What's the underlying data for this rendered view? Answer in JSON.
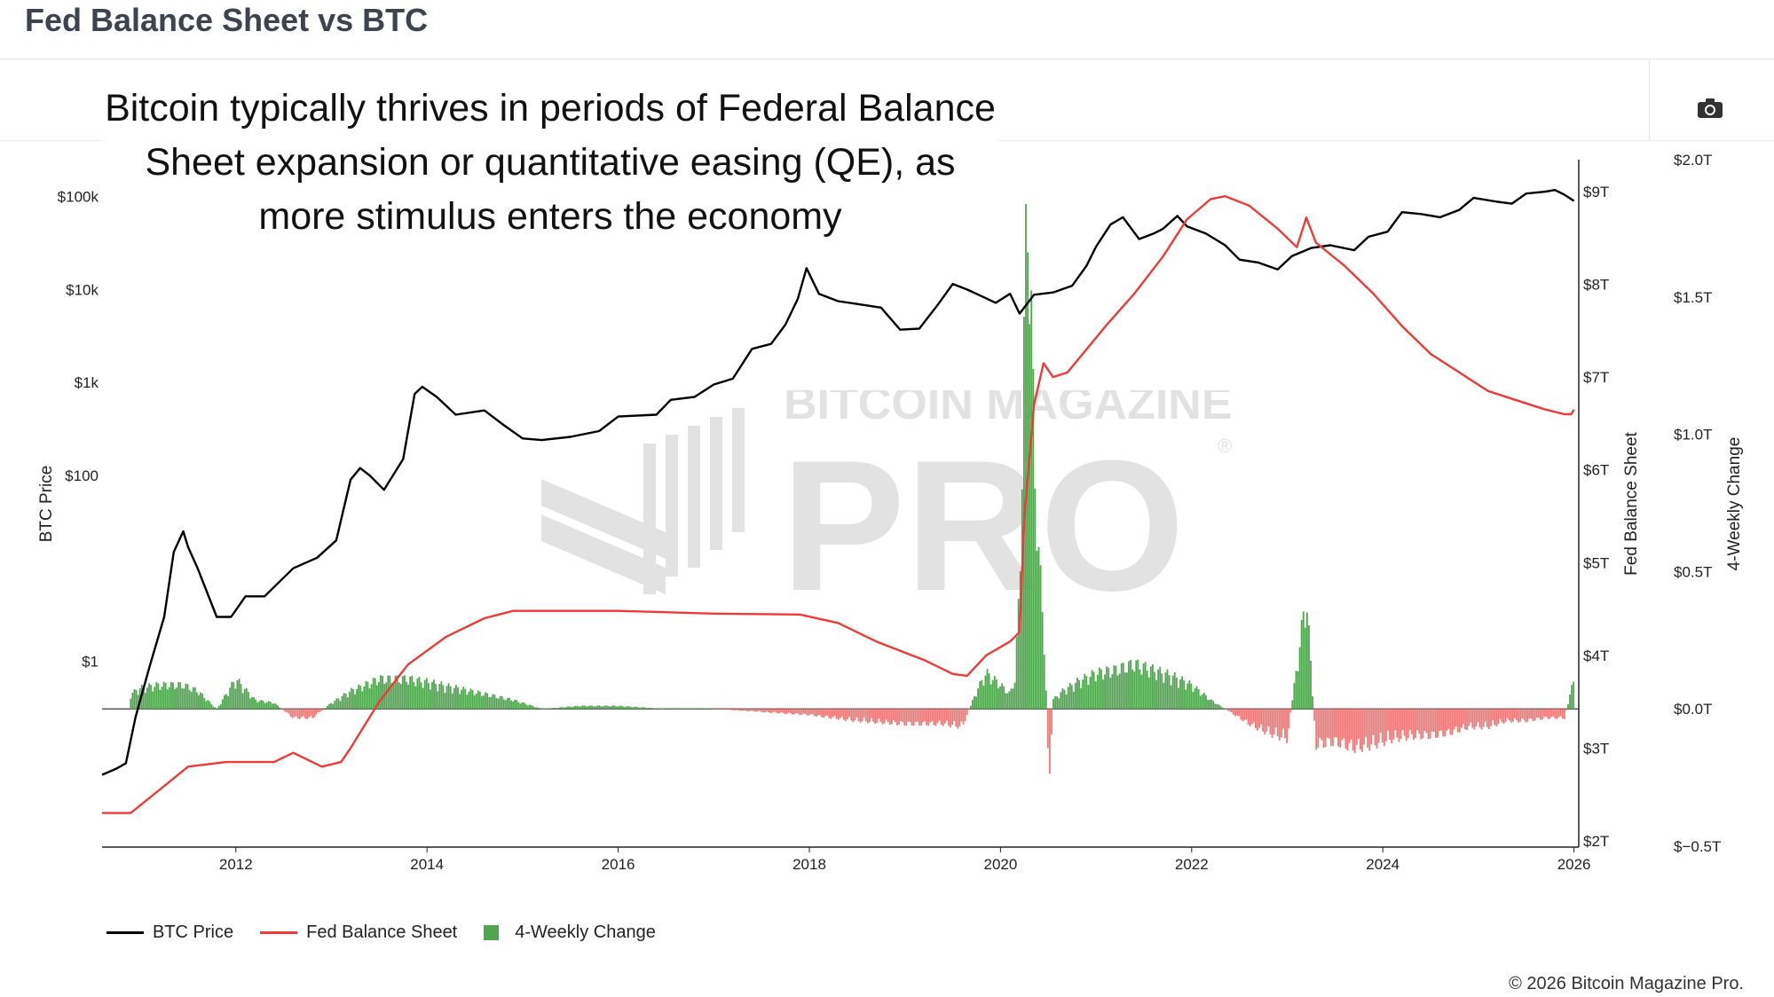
{
  "page": {
    "title": "Fed Balance Sheet vs BTC",
    "annotation": "Bitcoin typically thrives in periods of Federal Balance Sheet expansion or quantitative easing (QE), as more stimulus enters the economy",
    "copyright": "© 2026 Bitcoin Magazine Pro.",
    "toolbar": {
      "camera_icon": "camera-icon"
    },
    "watermark": {
      "line1": "BITCOIN MAGAZINE",
      "line2": "PRO",
      "mark": "®"
    }
  },
  "legend": [
    {
      "label": "BTC Price",
      "color": "#000000",
      "kind": "line"
    },
    {
      "label": "Fed Balance Sheet",
      "color": "#f03a3a",
      "kind": "line"
    },
    {
      "label": "4-Weekly Change",
      "color": "#4fa64f",
      "kind": "box"
    }
  ],
  "chart_data": {
    "type": "line",
    "axes": {
      "x": {
        "ticks": [
          "2012",
          "2014",
          "2016",
          "2018",
          "2020",
          "2022",
          "2024",
          "2026"
        ],
        "range": [
          2010.6,
          2026.05
        ]
      },
      "y_left": {
        "label": "BTC Price",
        "scale": "log",
        "ticks": [
          "$1",
          "$100",
          "$1k",
          "$10k",
          "$100k"
        ],
        "tick_values": [
          1,
          100,
          1000,
          10000,
          100000
        ],
        "range": [
          0.01,
          250000
        ]
      },
      "y_right1": {
        "label": "Fed Balance Sheet",
        "ticks": [
          "$2T",
          "$3T",
          "$4T",
          "$5T",
          "$6T",
          "$7T",
          "$8T",
          "$9T"
        ],
        "tick_values": [
          2,
          3,
          4,
          5,
          6,
          7,
          8,
          9
        ],
        "range": [
          2.0,
          9.0
        ],
        "unit": "T"
      },
      "y_right2": {
        "label": "4-Weekly Change",
        "ticks": [
          "$−0.5T",
          "$0.0T",
          "$0.5T",
          "$1.0T",
          "$1.5T",
          "$2.0T"
        ],
        "tick_values": [
          -0.5,
          0,
          0.5,
          1.0,
          1.5,
          2.0
        ],
        "range": [
          -0.5,
          2.0
        ]
      }
    },
    "series": [
      {
        "name": "BTC Price",
        "color": "#000000",
        "points": [
          [
            2010.6,
            0.06
          ],
          [
            2010.75,
            0.07
          ],
          [
            2010.85,
            0.08
          ],
          [
            2010.95,
            0.25
          ],
          [
            2011.1,
            0.9
          ],
          [
            2011.25,
            3
          ],
          [
            2011.35,
            15
          ],
          [
            2011.45,
            25
          ],
          [
            2011.5,
            17
          ],
          [
            2011.6,
            10
          ],
          [
            2011.8,
            3
          ],
          [
            2011.95,
            3
          ],
          [
            2012.1,
            5
          ],
          [
            2012.3,
            5
          ],
          [
            2012.6,
            10
          ],
          [
            2012.85,
            13
          ],
          [
            2013.05,
            20
          ],
          [
            2013.2,
            90
          ],
          [
            2013.3,
            120
          ],
          [
            2013.4,
            100
          ],
          [
            2013.55,
            70
          ],
          [
            2013.75,
            150
          ],
          [
            2013.87,
            750
          ],
          [
            2013.95,
            900
          ],
          [
            2014.1,
            700
          ],
          [
            2014.3,
            450
          ],
          [
            2014.6,
            500
          ],
          [
            2014.8,
            350
          ],
          [
            2015.0,
            250
          ],
          [
            2015.2,
            240
          ],
          [
            2015.5,
            260
          ],
          [
            2015.8,
            300
          ],
          [
            2016.0,
            430
          ],
          [
            2016.4,
            450
          ],
          [
            2016.55,
            650
          ],
          [
            2016.8,
            700
          ],
          [
            2017.0,
            950
          ],
          [
            2017.2,
            1100
          ],
          [
            2017.4,
            2300
          ],
          [
            2017.6,
            2600
          ],
          [
            2017.75,
            4200
          ],
          [
            2017.88,
            8000
          ],
          [
            2017.97,
            17000
          ],
          [
            2018.1,
            9000
          ],
          [
            2018.3,
            7500
          ],
          [
            2018.5,
            7000
          ],
          [
            2018.75,
            6400
          ],
          [
            2018.95,
            3700
          ],
          [
            2019.15,
            3800
          ],
          [
            2019.35,
            7000
          ],
          [
            2019.5,
            11500
          ],
          [
            2019.65,
            10000
          ],
          [
            2019.8,
            8500
          ],
          [
            2019.95,
            7200
          ],
          [
            2020.1,
            9000
          ],
          [
            2020.2,
            5500
          ],
          [
            2020.35,
            8800
          ],
          [
            2020.55,
            9300
          ],
          [
            2020.75,
            11000
          ],
          [
            2020.9,
            18000
          ],
          [
            2021.0,
            29000
          ],
          [
            2021.15,
            50000
          ],
          [
            2021.28,
            60000
          ],
          [
            2021.45,
            35000
          ],
          [
            2021.6,
            40000
          ],
          [
            2021.7,
            45000
          ],
          [
            2021.85,
            62000
          ],
          [
            2021.95,
            48000
          ],
          [
            2022.15,
            40000
          ],
          [
            2022.35,
            30000
          ],
          [
            2022.5,
            21000
          ],
          [
            2022.7,
            19500
          ],
          [
            2022.9,
            16500
          ],
          [
            2023.05,
            23000
          ],
          [
            2023.25,
            28000
          ],
          [
            2023.45,
            30000
          ],
          [
            2023.7,
            26500
          ],
          [
            2023.85,
            37000
          ],
          [
            2024.05,
            42000
          ],
          [
            2024.2,
            68000
          ],
          [
            2024.4,
            65000
          ],
          [
            2024.6,
            60000
          ],
          [
            2024.8,
            72000
          ],
          [
            2024.95,
            97000
          ],
          [
            2025.2,
            88000
          ],
          [
            2025.35,
            84000
          ],
          [
            2025.5,
            108000
          ],
          [
            2025.7,
            113000
          ],
          [
            2025.8,
            118000
          ],
          [
            2025.9,
            105000
          ],
          [
            2026.0,
            90000
          ]
        ]
      },
      {
        "name": "Fed Balance Sheet",
        "color": "#f03a3a",
        "points": [
          [
            2010.6,
            2.3
          ],
          [
            2010.9,
            2.3
          ],
          [
            2011.2,
            2.55
          ],
          [
            2011.5,
            2.8
          ],
          [
            2011.9,
            2.85
          ],
          [
            2012.0,
            2.85
          ],
          [
            2012.4,
            2.85
          ],
          [
            2012.6,
            2.95
          ],
          [
            2012.9,
            2.8
          ],
          [
            2013.1,
            2.85
          ],
          [
            2013.2,
            3.0
          ],
          [
            2013.5,
            3.5
          ],
          [
            2013.8,
            3.9
          ],
          [
            2014.2,
            4.2
          ],
          [
            2014.6,
            4.4
          ],
          [
            2014.9,
            4.48
          ],
          [
            2015.5,
            4.48
          ],
          [
            2016.0,
            4.48
          ],
          [
            2017.0,
            4.45
          ],
          [
            2017.9,
            4.44
          ],
          [
            2018.3,
            4.35
          ],
          [
            2018.7,
            4.15
          ],
          [
            2019.2,
            3.95
          ],
          [
            2019.5,
            3.8
          ],
          [
            2019.65,
            3.78
          ],
          [
            2019.85,
            4.0
          ],
          [
            2020.1,
            4.15
          ],
          [
            2020.2,
            4.25
          ],
          [
            2020.25,
            5.5
          ],
          [
            2020.35,
            6.7
          ],
          [
            2020.45,
            7.15
          ],
          [
            2020.55,
            7.0
          ],
          [
            2020.7,
            7.05
          ],
          [
            2020.9,
            7.3
          ],
          [
            2021.1,
            7.55
          ],
          [
            2021.4,
            7.9
          ],
          [
            2021.7,
            8.3
          ],
          [
            2021.95,
            8.7
          ],
          [
            2022.2,
            8.92
          ],
          [
            2022.35,
            8.95
          ],
          [
            2022.6,
            8.85
          ],
          [
            2022.9,
            8.6
          ],
          [
            2023.1,
            8.4
          ],
          [
            2023.2,
            8.72
          ],
          [
            2023.3,
            8.45
          ],
          [
            2023.6,
            8.2
          ],
          [
            2023.9,
            7.9
          ],
          [
            2024.2,
            7.55
          ],
          [
            2024.5,
            7.25
          ],
          [
            2024.8,
            7.05
          ],
          [
            2025.1,
            6.85
          ],
          [
            2025.4,
            6.75
          ],
          [
            2025.7,
            6.65
          ],
          [
            2025.9,
            6.6
          ],
          [
            2025.97,
            6.6
          ],
          [
            2026.0,
            6.65
          ]
        ]
      },
      {
        "name": "4-Weekly Change",
        "color": "#4fa64f",
        "negative_color": "#f07878",
        "points": [
          [
            2010.9,
            0.05
          ],
          [
            2011.0,
            0.07
          ],
          [
            2011.2,
            0.08
          ],
          [
            2011.45,
            0.08
          ],
          [
            2011.6,
            0.06
          ],
          [
            2011.8,
            0.0
          ],
          [
            2012.0,
            0.1
          ],
          [
            2012.2,
            0.03
          ],
          [
            2012.4,
            0.02
          ],
          [
            2012.6,
            -0.03
          ],
          [
            2012.8,
            -0.03
          ],
          [
            2013.0,
            0.02
          ],
          [
            2013.2,
            0.06
          ],
          [
            2013.5,
            0.1
          ],
          [
            2013.8,
            0.1
          ],
          [
            2014.0,
            0.09
          ],
          [
            2014.3,
            0.07
          ],
          [
            2014.6,
            0.05
          ],
          [
            2014.9,
            0.03
          ],
          [
            2015.2,
            0.0
          ],
          [
            2015.6,
            0.01
          ],
          [
            2016.0,
            0.01
          ],
          [
            2016.5,
            0.0
          ],
          [
            2017.0,
            0.0
          ],
          [
            2017.5,
            -0.01
          ],
          [
            2018.0,
            -0.02
          ],
          [
            2018.5,
            -0.04
          ],
          [
            2019.0,
            -0.05
          ],
          [
            2019.4,
            -0.05
          ],
          [
            2019.6,
            -0.06
          ],
          [
            2019.75,
            0.06
          ],
          [
            2019.85,
            0.12
          ],
          [
            2020.0,
            0.08
          ],
          [
            2020.1,
            0.05
          ],
          [
            2020.15,
            0.1
          ],
          [
            2020.2,
            0.4
          ],
          [
            2020.25,
            1.25
          ],
          [
            2020.28,
            1.75
          ],
          [
            2020.3,
            1.6
          ],
          [
            2020.35,
            0.9
          ],
          [
            2020.4,
            0.5
          ],
          [
            2020.45,
            0.3
          ],
          [
            2020.5,
            -0.15
          ],
          [
            2020.52,
            -0.25
          ],
          [
            2020.55,
            0.03
          ],
          [
            2020.65,
            0.06
          ],
          [
            2020.8,
            0.09
          ],
          [
            2021.0,
            0.12
          ],
          [
            2021.2,
            0.13
          ],
          [
            2021.4,
            0.15
          ],
          [
            2021.6,
            0.13
          ],
          [
            2021.8,
            0.11
          ],
          [
            2022.0,
            0.08
          ],
          [
            2022.2,
            0.03
          ],
          [
            2022.4,
            -0.01
          ],
          [
            2022.6,
            -0.05
          ],
          [
            2022.8,
            -0.08
          ],
          [
            2023.0,
            -0.1
          ],
          [
            2023.2,
            0.38
          ],
          [
            2023.3,
            -0.12
          ],
          [
            2023.5,
            -0.11
          ],
          [
            2023.7,
            -0.13
          ],
          [
            2023.9,
            -0.12
          ],
          [
            2024.1,
            -0.1
          ],
          [
            2024.3,
            -0.09
          ],
          [
            2024.5,
            -0.09
          ],
          [
            2024.7,
            -0.08
          ],
          [
            2024.9,
            -0.06
          ],
          [
            2025.1,
            -0.06
          ],
          [
            2025.3,
            -0.04
          ],
          [
            2025.5,
            -0.04
          ],
          [
            2025.7,
            -0.03
          ],
          [
            2025.9,
            -0.03
          ],
          [
            2026.0,
            0.1
          ]
        ]
      }
    ],
    "grid": false,
    "legend_position": "bottom-left"
  }
}
